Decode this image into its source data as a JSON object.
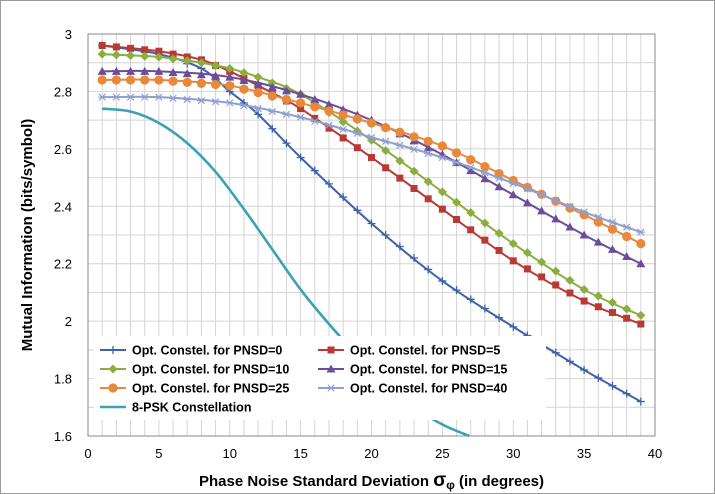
{
  "chart_data": {
    "type": "line",
    "title": "",
    "xlabel": "Phase Noise Standard Deviation σφ (in degrees)",
    "xlabel_parts": [
      "Phase Noise Standard Deviation ",
      "σ",
      "φ",
      " (in degrees)"
    ],
    "ylabel": "Mutual Information (bits/symbol)",
    "xlim": [
      0,
      40
    ],
    "ylim": [
      1.6,
      3.0
    ],
    "x_ticks": [
      "0",
      "5",
      "10",
      "15",
      "20",
      "25",
      "30",
      "35",
      "40"
    ],
    "y_ticks": [
      "1.6",
      "1.8",
      "2",
      "2.2",
      "2.4",
      "2.6",
      "2.8",
      "3"
    ],
    "grid": true,
    "legend_position": "bottom-left",
    "series": [
      {
        "name": "Opt. Constel. for PNSD=0",
        "color": "#3F63A8",
        "marker": "plus",
        "points": [
          [
            1,
            2.96
          ],
          [
            5,
            2.93
          ],
          [
            8,
            2.88
          ],
          [
            10,
            2.8
          ],
          [
            12,
            2.72
          ],
          [
            15,
            2.57
          ],
          [
            20,
            2.34
          ],
          [
            25,
            2.14
          ],
          [
            30,
            1.98
          ],
          [
            35,
            1.83
          ],
          [
            39,
            1.72
          ]
        ]
      },
      {
        "name": "Opt. Constel. for PNSD=5",
        "color": "#B83A35",
        "marker": "square",
        "points": [
          [
            1,
            2.96
          ],
          [
            5,
            2.94
          ],
          [
            8,
            2.91
          ],
          [
            10,
            2.87
          ],
          [
            12,
            2.82
          ],
          [
            15,
            2.74
          ],
          [
            20,
            2.57
          ],
          [
            25,
            2.39
          ],
          [
            30,
            2.21
          ],
          [
            35,
            2.07
          ],
          [
            39,
            1.99
          ]
        ]
      },
      {
        "name": "Opt. Constel. for PNSD=10",
        "color": "#8BAE3F",
        "marker": "diamond",
        "points": [
          [
            1,
            2.93
          ],
          [
            5,
            2.92
          ],
          [
            8,
            2.9
          ],
          [
            10,
            2.88
          ],
          [
            12,
            2.85
          ],
          [
            15,
            2.79
          ],
          [
            20,
            2.63
          ],
          [
            25,
            2.45
          ],
          [
            30,
            2.27
          ],
          [
            35,
            2.11
          ],
          [
            39,
            2.02
          ]
        ]
      },
      {
        "name": "Opt. Constel. for PNSD=15",
        "color": "#6B4E99",
        "marker": "triangle",
        "points": [
          [
            1,
            2.87
          ],
          [
            5,
            2.87
          ],
          [
            10,
            2.85
          ],
          [
            15,
            2.79
          ],
          [
            20,
            2.7
          ],
          [
            25,
            2.58
          ],
          [
            30,
            2.44
          ],
          [
            35,
            2.3
          ],
          [
            39,
            2.2
          ]
        ]
      },
      {
        "name": "Opt. Constel. for PNSD=25",
        "color": "#E8883A",
        "marker": "circle",
        "points": [
          [
            1,
            2.84
          ],
          [
            5,
            2.84
          ],
          [
            10,
            2.82
          ],
          [
            15,
            2.76
          ],
          [
            20,
            2.69
          ],
          [
            25,
            2.61
          ],
          [
            30,
            2.49
          ],
          [
            35,
            2.37
          ],
          [
            39,
            2.27
          ]
        ]
      },
      {
        "name": "Opt. Constel. for PNSD=40",
        "color": "#8E9FD0",
        "marker": "asterisk",
        "points": [
          [
            1,
            2.78
          ],
          [
            5,
            2.78
          ],
          [
            10,
            2.76
          ],
          [
            15,
            2.71
          ],
          [
            20,
            2.64
          ],
          [
            25,
            2.57
          ],
          [
            30,
            2.48
          ],
          [
            35,
            2.38
          ],
          [
            39,
            2.31
          ]
        ]
      },
      {
        "name": "8-PSK Constellation",
        "color": "#3BA1B5",
        "marker": "none",
        "points": [
          [
            1,
            2.74
          ],
          [
            3,
            2.73
          ],
          [
            5,
            2.69
          ],
          [
            7,
            2.62
          ],
          [
            9,
            2.52
          ],
          [
            11,
            2.39
          ],
          [
            13,
            2.25
          ],
          [
            15,
            2.11
          ],
          [
            17,
            1.99
          ],
          [
            19,
            1.88
          ],
          [
            21,
            1.78
          ],
          [
            23,
            1.7
          ],
          [
            25,
            1.64
          ],
          [
            26.9,
            1.6
          ]
        ]
      }
    ]
  }
}
